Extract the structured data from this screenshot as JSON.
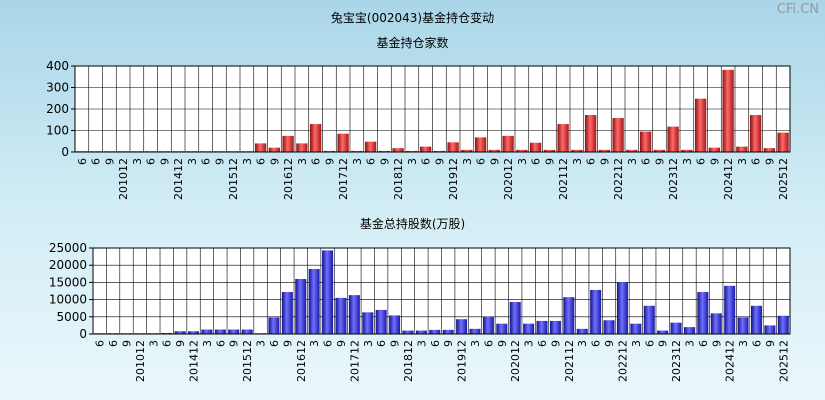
{
  "title": "兔宝宝(002043)基金持仓变动",
  "watermark": "CFi.CN",
  "chart_data": [
    {
      "type": "bar",
      "title": "基金持仓家数",
      "ylim": [
        0,
        400
      ],
      "yticks": [
        0,
        100,
        200,
        300,
        400
      ],
      "x_labels": [
        "6",
        "6",
        "9",
        "201012",
        "3",
        "6",
        "9",
        "201412",
        "3",
        "6",
        "9",
        "201512",
        "3",
        "6",
        "9",
        "201612",
        "3",
        "6",
        "9",
        "201712",
        "3",
        "6",
        "9",
        "201812",
        "3",
        "6",
        "9",
        "201912",
        "3",
        "6",
        "9",
        "202012",
        "3",
        "6",
        "9",
        "202112",
        "3",
        "6",
        "9",
        "202212",
        "3",
        "6",
        "9",
        "202312",
        "3",
        "6",
        "9",
        "202412",
        "3",
        "6",
        "9",
        "202512"
      ],
      "values": [
        2,
        2,
        2,
        2,
        2,
        2,
        2,
        2,
        2,
        2,
        2,
        2,
        2,
        40,
        20,
        75,
        40,
        130,
        5,
        85,
        5,
        48,
        5,
        18,
        5,
        25,
        5,
        45,
        10,
        68,
        10,
        75,
        10,
        43,
        10,
        130,
        10,
        172,
        10,
        158,
        10,
        95,
        10,
        118,
        10,
        248,
        20,
        382,
        25,
        172,
        18,
        90
      ],
      "color": "#e03030"
    },
    {
      "type": "bar",
      "title": "基金总持股数(万股)",
      "ylim": [
        0,
        25000
      ],
      "yticks": [
        0,
        5000,
        10000,
        15000,
        20000,
        25000
      ],
      "x_labels": [
        "6",
        "6",
        "9",
        "201012",
        "3",
        "6",
        "9",
        "201412",
        "3",
        "6",
        "9",
        "201512",
        "3",
        "6",
        "9",
        "201612",
        "3",
        "6",
        "9",
        "201712",
        "3",
        "6",
        "9",
        "201812",
        "3",
        "6",
        "9",
        "201912",
        "3",
        "6",
        "9",
        "202012",
        "3",
        "6",
        "9",
        "202112",
        "3",
        "6",
        "9",
        "202212",
        "3",
        "6",
        "9",
        "202312",
        "3",
        "6",
        "9",
        "202412",
        "3",
        "6",
        "9",
        "202512"
      ],
      "values": [
        200,
        200,
        200,
        200,
        200,
        300,
        800,
        800,
        1300,
        1300,
        1300,
        1300,
        200,
        4800,
        12200,
        16000,
        18900,
        24300,
        10500,
        11300,
        6300,
        7000,
        5400,
        1000,
        1000,
        1200,
        1200,
        4300,
        1500,
        5000,
        3000,
        9300,
        3000,
        3800,
        3800,
        10700,
        1500,
        12800,
        4000,
        15100,
        3000,
        8200,
        1000,
        3300,
        2000,
        12200,
        6000,
        14000,
        4800,
        8200,
        2500,
        5300
      ],
      "color": "#3a3ae0"
    }
  ]
}
